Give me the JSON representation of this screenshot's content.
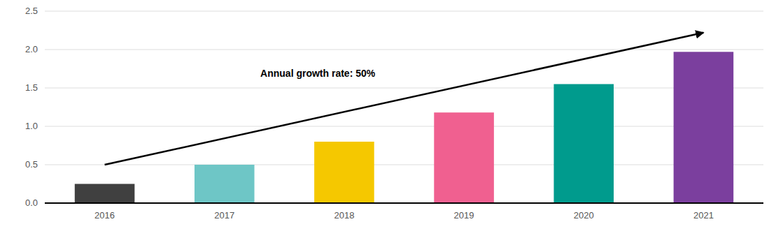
{
  "chart_data": {
    "type": "bar",
    "categories": [
      "2016",
      "2017",
      "2018",
      "2019",
      "2020",
      "2021"
    ],
    "values": [
      0.25,
      0.5,
      0.8,
      1.18,
      1.55,
      1.97
    ],
    "colors": [
      "#404040",
      "#6EC6C6",
      "#F5C800",
      "#F06090",
      "#009B8D",
      "#7B3F9E"
    ],
    "annotation": "Annual growth rate: 50%",
    "ylim": [
      0,
      2.5
    ],
    "yticks": [
      {
        "value": 0,
        "label": "0.0"
      },
      0.5,
      {
        "value": 1.0,
        "label": "1.0"
      },
      1.5,
      {
        "value": 2.0,
        "label": "2.0"
      },
      2.5
    ],
    "grid": true
  }
}
